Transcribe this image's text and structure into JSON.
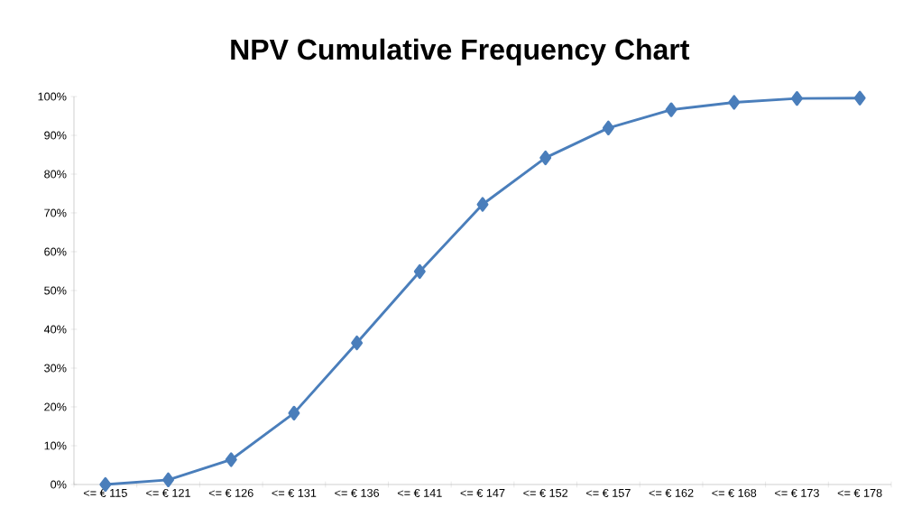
{
  "chart_data": {
    "type": "line",
    "title": "NPV Cumulative Frequency Chart",
    "categories": [
      "<= € 115",
      "<= € 121",
      "<= € 126",
      "<= € 131",
      "<= € 136",
      "<= € 141",
      "<= € 147",
      "<= € 152",
      "<= € 157",
      "<= € 162",
      "<= € 168",
      "<= € 173",
      "<= € 178"
    ],
    "series": [
      {
        "color": "#4a7ebb",
        "values": [
          0,
          1.2,
          6.4,
          18.4,
          36.5,
          54.9,
          72.2,
          84.2,
          91.9,
          96.6,
          98.5,
          99.5,
          99.6
        ]
      }
    ],
    "ylim": [
      0,
      100
    ],
    "yticks": [
      {
        "value": 0,
        "label": "0%"
      },
      {
        "value": 10,
        "label": "10%"
      },
      {
        "value": 20,
        "label": "20%"
      },
      {
        "value": 30,
        "label": "30%"
      },
      {
        "value": 40,
        "label": "40%"
      },
      {
        "value": 50,
        "label": "50%"
      },
      {
        "value": 60,
        "label": "60%"
      },
      {
        "value": 70,
        "label": "70%"
      },
      {
        "value": 80,
        "label": "80%"
      },
      {
        "value": 90,
        "label": "90%"
      },
      {
        "value": 100,
        "label": "100%"
      }
    ],
    "grid": false,
    "marker": "diamond",
    "line_style": "solid"
  }
}
